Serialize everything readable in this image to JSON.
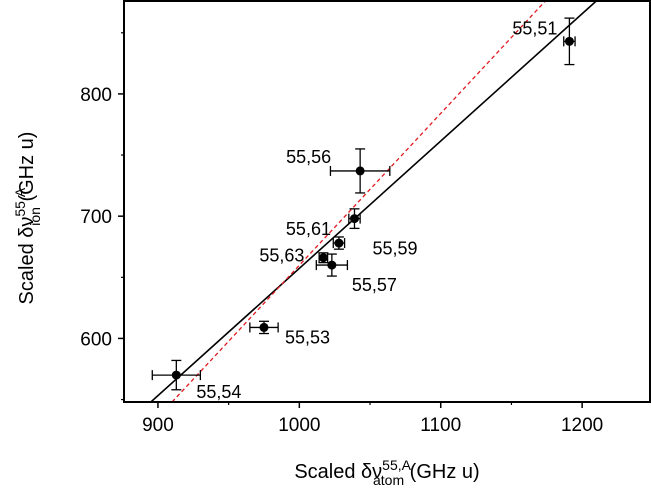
{
  "chart_data": {
    "type": "scatter",
    "title": "",
    "xlabel": {
      "prefix": "Scaled δν",
      "superscript": "55,A",
      "subscript": "atom",
      "unit": " (GHz u)"
    },
    "ylabel": {
      "prefix": "Scaled δν",
      "superscript": "55,A",
      "subscript": "ion",
      "unit": " (GHz u)"
    },
    "xlim": [
      876,
      1248
    ],
    "ylim": [
      548,
      876
    ],
    "xticks": [
      900,
      1000,
      1100,
      1200
    ],
    "yticks": [
      600,
      700,
      800
    ],
    "grid": false,
    "points": [
      {
        "label": "55,51",
        "x": 1191,
        "y": 843,
        "xerr": 4,
        "yerr": 19
      },
      {
        "label": "55,56",
        "x": 1043,
        "y": 737,
        "xerr": 21,
        "yerr": 18
      },
      {
        "label": "55,59",
        "x": 1039,
        "y": 698,
        "xerr": 4,
        "yerr": 8
      },
      {
        "label": "55,61",
        "x": 1028,
        "y": 678,
        "xerr": 4,
        "yerr": 5
      },
      {
        "label": "55,63",
        "x": 1017,
        "y": 666,
        "xerr": 3,
        "yerr": 4
      },
      {
        "label": "55,57",
        "x": 1023,
        "y": 660,
        "xerr": 11,
        "yerr": 9
      },
      {
        "label": "55,53",
        "x": 975,
        "y": 609,
        "xerr": 10,
        "yerr": 5
      },
      {
        "label": "55,54",
        "x": 913,
        "y": 570,
        "xerr": 17,
        "yerr": 12
      }
    ],
    "lines": [
      {
        "style": "solid",
        "color": "#000000",
        "x": [
          895,
          1210
        ],
        "y": [
          548,
          876
        ]
      },
      {
        "style": "dashed",
        "color": "#e0191e",
        "x": [
          910,
          1174
        ],
        "y": [
          548,
          876
        ]
      }
    ]
  }
}
